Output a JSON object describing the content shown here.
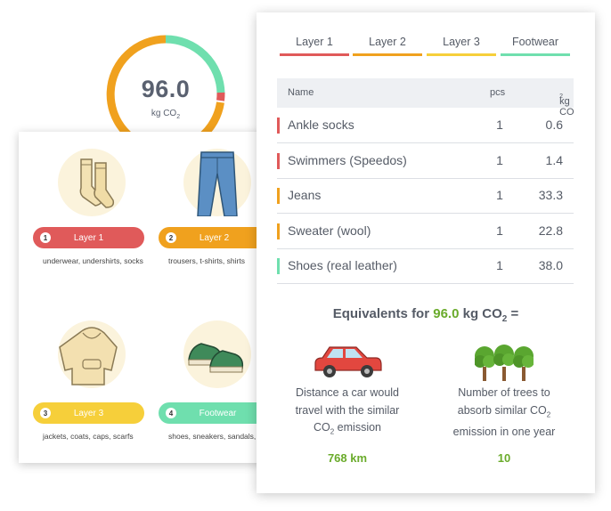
{
  "gauge": {
    "value": "96.0",
    "unit": "kg CO",
    "unit_sub": "2"
  },
  "layers": [
    {
      "num": "1",
      "label": "Layer 1",
      "desc": "underwear, undershirts, socks",
      "color": "#e05a5a",
      "icon": "socks-icon"
    },
    {
      "num": "2",
      "label": "Layer 2",
      "desc": "trousers, t-shirts, shirts",
      "color": "#f0a11e",
      "icon": "jeans-icon"
    },
    {
      "num": "3",
      "label": "Layer 3",
      "desc": "jackets, coats, caps, scarfs",
      "color": "#f6cf3a",
      "icon": "hoodie-icon"
    },
    {
      "num": "4",
      "label": "Footwear",
      "desc": "shoes, sneakers, sandals, boots",
      "color": "#6fdfae",
      "icon": "sneakers-icon"
    }
  ],
  "tabs": [
    {
      "label": "Layer 1",
      "color": "#e05a5a"
    },
    {
      "label": "Layer 2",
      "color": "#f0a11e"
    },
    {
      "label": "Layer 3",
      "color": "#f6cf3a"
    },
    {
      "label": "Footwear",
      "color": "#6fdfae"
    }
  ],
  "table": {
    "headers": {
      "name": "Name",
      "pcs": "pcs",
      "kg": "kg CO",
      "kg_sub": "2"
    },
    "rows": [
      {
        "name": "Ankle socks",
        "pcs": "1",
        "kg": "0.6",
        "color": "#e05a5a"
      },
      {
        "name": "Swimmers (Speedos)",
        "pcs": "1",
        "kg": "1.4",
        "color": "#e05a5a"
      },
      {
        "name": "Jeans",
        "pcs": "1",
        "kg": "33.3",
        "color": "#f0a11e"
      },
      {
        "name": "Sweater (wool)",
        "pcs": "1",
        "kg": "22.8",
        "color": "#f0a11e"
      },
      {
        "name": "Shoes (real leather)",
        "pcs": "1",
        "kg": "38.0",
        "color": "#6fdfae"
      }
    ]
  },
  "equivalents": {
    "prefix": "Equivalents for",
    "value": "96.0",
    "unit": "kg CO",
    "unit_sub": "2",
    "suffix": "=",
    "car": {
      "line1": "Distance a car would",
      "line2": "travel with the similar",
      "line3_a": "CO",
      "line3_sub": "2",
      "line3_b": " emission",
      "value": "768 km",
      "icon": "car-icon"
    },
    "trees": {
      "line1": "Number of trees to",
      "line2_a": "absorb similar CO",
      "line2_sub": "2",
      "line3": "emission in one year",
      "value": "10",
      "icon": "trees-icon"
    }
  }
}
